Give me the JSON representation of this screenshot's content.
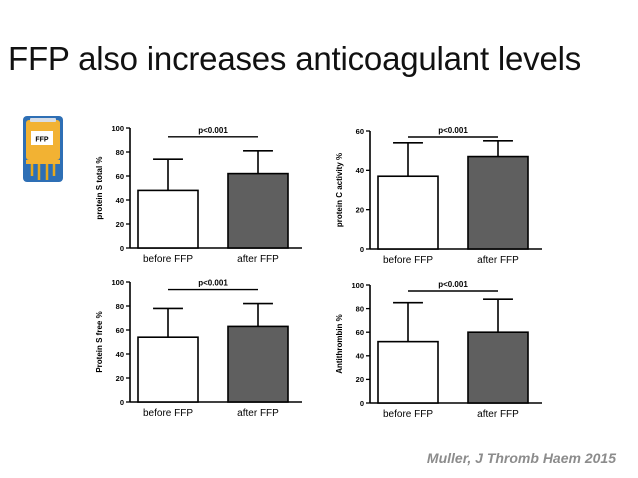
{
  "slide": {
    "title": "FFP also increases anticoagulant levels",
    "citation": "Muller, J Thromb Haem 2015"
  },
  "icon": {
    "name": "ffp-bag-icon",
    "label": "FFP",
    "bag_color": "#f2b233",
    "frame_color": "#2e6fb5"
  },
  "colors": {
    "before_fill": "#ffffff",
    "after_fill": "#5f5f5f",
    "line": "#000000"
  },
  "chart_data": [
    {
      "type": "bar",
      "ylabel": "protein S total %",
      "ylim": [
        0,
        100
      ],
      "yticks": [
        0,
        20,
        40,
        60,
        80,
        100
      ],
      "categories": [
        "before FFP",
        "after FFP"
      ],
      "values": [
        48,
        62
      ],
      "errors": [
        26,
        19
      ],
      "annotation": "p<0.001"
    },
    {
      "type": "bar",
      "ylabel": "protein C activity %",
      "ylim": [
        0,
        60
      ],
      "yticks": [
        0,
        20,
        40,
        60
      ],
      "categories": [
        "before FFP",
        "after FFP"
      ],
      "values": [
        37,
        47
      ],
      "errors": [
        17,
        8
      ],
      "annotation": "p<0.001"
    },
    {
      "type": "bar",
      "ylabel": "Protein S free %",
      "ylim": [
        0,
        100
      ],
      "yticks": [
        0,
        20,
        40,
        60,
        80,
        100
      ],
      "categories": [
        "before FFP",
        "after FFP"
      ],
      "values": [
        54,
        63
      ],
      "errors": [
        24,
        19
      ],
      "annotation": "p<0.001"
    },
    {
      "type": "bar",
      "ylabel": "Antithrombin %",
      "ylim": [
        0,
        100
      ],
      "yticks": [
        0,
        20,
        40,
        60,
        80,
        100
      ],
      "categories": [
        "before FFP",
        "after FFP"
      ],
      "values": [
        52,
        60
      ],
      "errors": [
        33,
        28
      ],
      "annotation": "p<0.001"
    }
  ]
}
